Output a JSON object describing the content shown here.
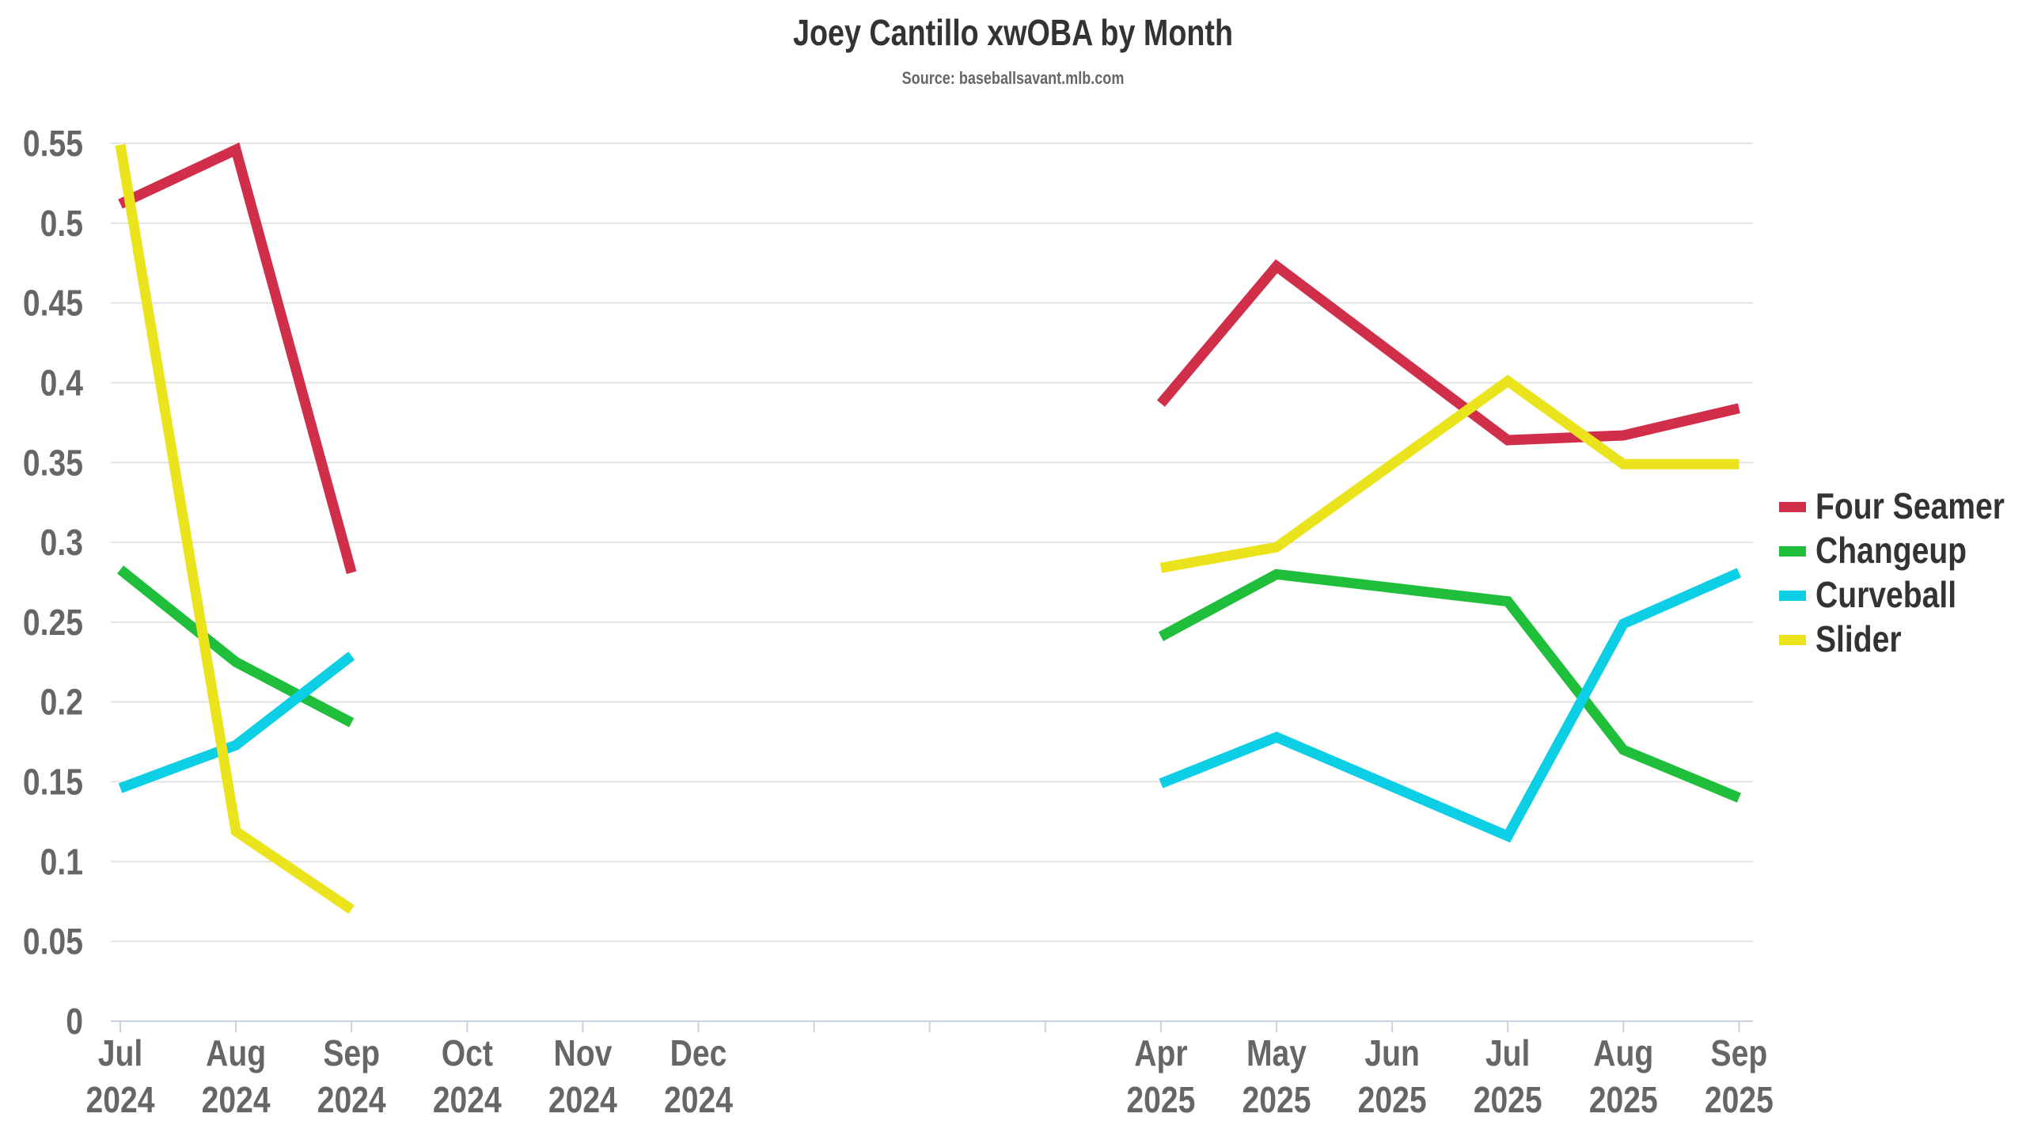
{
  "chart_data": {
    "type": "line",
    "title": "Joey Cantillo xwOBA by Month",
    "subtitle": "Source: baseballsavant.mlb.com",
    "xlabel": "",
    "ylabel": "",
    "ylim": [
      0,
      0.55
    ],
    "yticks": [
      "0",
      "0.05",
      "0.1",
      "0.15",
      "0.2",
      "0.25",
      "0.3",
      "0.35",
      "0.4",
      "0.45",
      "0.5",
      "0.55"
    ],
    "x_months": [
      "2024-07",
      "2024-08",
      "2024-09",
      "2024-10",
      "2024-11",
      "2024-12",
      "2025-01",
      "2025-02",
      "2025-03",
      "2025-04",
      "2025-05",
      "2025-06",
      "2025-07",
      "2025-08",
      "2025-09"
    ],
    "x_labels": [
      {
        "month": "2024-07",
        "line1": "Jul",
        "line2": "2024"
      },
      {
        "month": "2024-08",
        "line1": "Aug",
        "line2": "2024"
      },
      {
        "month": "2024-09",
        "line1": "Sep",
        "line2": "2024"
      },
      {
        "month": "2024-10",
        "line1": "Oct",
        "line2": "2024"
      },
      {
        "month": "2024-11",
        "line1": "Nov",
        "line2": "2024"
      },
      {
        "month": "2024-12",
        "line1": "Dec",
        "line2": "2024"
      },
      {
        "month": "2025-04",
        "line1": "Apr",
        "line2": "2025"
      },
      {
        "month": "2025-05",
        "line1": "May",
        "line2": "2025"
      },
      {
        "month": "2025-06",
        "line1": "Jun",
        "line2": "2025"
      },
      {
        "month": "2025-07",
        "line1": "Jul",
        "line2": "2025"
      },
      {
        "month": "2025-08",
        "line1": "Aug",
        "line2": "2025"
      },
      {
        "month": "2025-09",
        "line1": "Sep",
        "line2": "2025"
      }
    ],
    "grid": true,
    "legend_position": "right",
    "series": [
      {
        "name": "Four Seamer",
        "color": "#d12e4a",
        "segments": [
          [
            {
              "x": "2024-07",
              "y": 0.512
            },
            {
              "x": "2024-08",
              "y": 0.546
            },
            {
              "x": "2024-09",
              "y": 0.281
            }
          ],
          [
            {
              "x": "2025-04",
              "y": 0.387
            },
            {
              "x": "2025-05",
              "y": 0.473
            },
            {
              "x": "2025-07",
              "y": 0.364
            },
            {
              "x": "2025-08",
              "y": 0.367
            },
            {
              "x": "2025-09",
              "y": 0.384
            }
          ]
        ]
      },
      {
        "name": "Changeup",
        "color": "#1fbf3b",
        "segments": [
          [
            {
              "x": "2024-07",
              "y": 0.283
            },
            {
              "x": "2024-08",
              "y": 0.225
            },
            {
              "x": "2024-09",
              "y": 0.187
            }
          ],
          [
            {
              "x": "2025-04",
              "y": 0.241
            },
            {
              "x": "2025-05",
              "y": 0.28
            },
            {
              "x": "2025-07",
              "y": 0.263
            },
            {
              "x": "2025-08",
              "y": 0.17
            },
            {
              "x": "2025-09",
              "y": 0.14
            }
          ]
        ]
      },
      {
        "name": "Curveball",
        "color": "#0ccfe6",
        "segments": [
          [
            {
              "x": "2024-07",
              "y": 0.146
            },
            {
              "x": "2024-08",
              "y": 0.173
            },
            {
              "x": "2024-09",
              "y": 0.229
            }
          ],
          [
            {
              "x": "2025-04",
              "y": 0.149
            },
            {
              "x": "2025-05",
              "y": 0.178
            },
            {
              "x": "2025-07",
              "y": 0.116
            },
            {
              "x": "2025-08",
              "y": 0.249
            },
            {
              "x": "2025-09",
              "y": 0.281
            }
          ]
        ]
      },
      {
        "name": "Slider",
        "color": "#ebe31c",
        "segments": [
          [
            {
              "x": "2024-07",
              "y": 0.549
            },
            {
              "x": "2024-08",
              "y": 0.119
            },
            {
              "x": "2024-09",
              "y": 0.07
            }
          ],
          [
            {
              "x": "2025-04",
              "y": 0.284
            },
            {
              "x": "2025-05",
              "y": 0.297
            },
            {
              "x": "2025-07",
              "y": 0.401
            },
            {
              "x": "2025-08",
              "y": 0.349
            },
            {
              "x": "2025-09",
              "y": 0.349
            }
          ]
        ]
      }
    ]
  }
}
